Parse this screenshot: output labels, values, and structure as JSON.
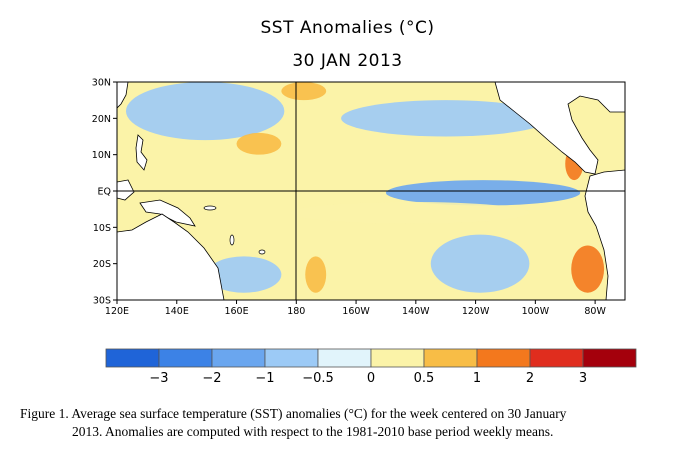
{
  "chart_data": {
    "type": "heatmap",
    "title": "SST Anomalies (°C)",
    "subtitle": "30 JAN 2013",
    "xlim": [
      120,
      290
    ],
    "ylim": [
      -30,
      30
    ],
    "x_ticks": [
      {
        "value": 120,
        "label": "120E"
      },
      {
        "value": 140,
        "label": "140E"
      },
      {
        "value": 160,
        "label": "160E"
      },
      {
        "value": 180,
        "label": "180"
      },
      {
        "value": 200,
        "label": "160W"
      },
      {
        "value": 220,
        "label": "140W"
      },
      {
        "value": 240,
        "label": "120W"
      },
      {
        "value": 260,
        "label": "100W"
      },
      {
        "value": 280,
        "label": "80W"
      }
    ],
    "y_ticks": [
      {
        "value": 30,
        "label": "30N"
      },
      {
        "value": 20,
        "label": "20N"
      },
      {
        "value": 10,
        "label": "10N"
      },
      {
        "value": 0,
        "label": "EQ"
      },
      {
        "value": -10,
        "label": "10S"
      },
      {
        "value": -20,
        "label": "20S"
      },
      {
        "value": -30,
        "label": "30S"
      }
    ],
    "colorbar": {
      "boundaries": [
        -3,
        -2,
        -1,
        -0.5,
        0,
        0.5,
        1,
        2,
        3
      ],
      "labels": [
        "−3",
        "−2",
        "−1",
        "−0.5",
        "0",
        "0.5",
        "1",
        "2",
        "3"
      ],
      "colors": [
        "#1f64d8",
        "#3c82e6",
        "#6aa6ef",
        "#9ccaf6",
        "#e1f4fb",
        "#fbf3a8",
        "#f8bd46",
        "#f3781d",
        "#e02d1e",
        "#a4000c"
      ]
    },
    "anomaly_regions": [
      {
        "lon": [
          123,
          176
        ],
        "lat": [
          14,
          30
        ],
        "value": -0.7
      },
      {
        "lon": [
          150,
          175
        ],
        "lat": [
          -28,
          -18
        ],
        "value": -0.6
      },
      {
        "lon": [
          195,
          265
        ],
        "lat": [
          15,
          25
        ],
        "value": -0.7
      },
      {
        "lon": [
          210,
          275
        ],
        "lat": [
          -4,
          3
        ],
        "value": -1.2
      },
      {
        "lon": [
          225,
          258
        ],
        "lat": [
          -28,
          -12
        ],
        "value": -0.7
      },
      {
        "lon": [
          178,
          258
        ],
        "lat": [
          -9,
          -3
        ],
        "value": 0.25
      },
      {
        "lon": [
          183,
          190
        ],
        "lat": [
          -28,
          -18
        ],
        "value": 0.8
      },
      {
        "lon": [
          175,
          190
        ],
        "lat": [
          25,
          30
        ],
        "value": 0.8
      },
      {
        "lon": [
          272,
          283
        ],
        "lat": [
          -28,
          -15
        ],
        "value": 1.5
      },
      {
        "lon": [
          270,
          276
        ],
        "lat": [
          3,
          12
        ],
        "value": 1.3
      },
      {
        "lon": [
          160,
          175
        ],
        "lat": [
          10,
          16
        ],
        "value": 0.8
      }
    ],
    "caption": [
      "Figure 1. Average sea surface temperature (SST) anomalies (°C) for the week centered on 30 January",
      "2013.   Anomalies are computed with respect to the 1981-2010 base period weekly means."
    ]
  }
}
